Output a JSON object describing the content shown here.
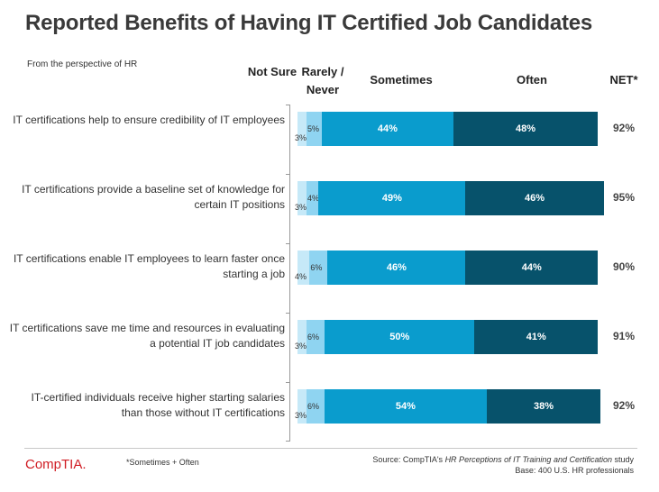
{
  "chart_data": {
    "type": "bar",
    "orientation": "horizontal-stacked",
    "title": "Reported Benefits of Having IT Certified Job Candidates",
    "subtitle": "From the perspective of HR",
    "columns": {
      "not_sure": "Not Sure",
      "rarely_never": "Rarely / Never",
      "sometimes": "Sometimes",
      "often": "Often",
      "net": "NET*"
    },
    "categories": [
      "IT certifications help to ensure credibility of IT employees",
      "IT certifications provide a baseline set of knowledge for certain IT positions",
      "IT certifications enable IT employees to learn faster once starting a job",
      "IT certifications save me time and resources in evaluating a potential IT job candidates",
      "IT-certified individuals receive higher starting salaries than those without IT certifications"
    ],
    "series": [
      {
        "name": "Not Sure",
        "values": [
          3,
          3,
          4,
          3,
          3
        ],
        "labels": [
          "3%",
          "3%",
          "4%",
          "3%",
          "3%"
        ],
        "color": "#c6e9f8"
      },
      {
        "name": "Rarely / Never",
        "values": [
          5,
          4,
          6,
          6,
          6
        ],
        "labels": [
          "5%",
          "4%",
          "6%",
          "6%",
          "6%"
        ],
        "color": "#8fd4f1"
      },
      {
        "name": "Sometimes",
        "values": [
          44,
          49,
          46,
          50,
          54
        ],
        "labels": [
          "44%",
          "49%",
          "46%",
          "50%",
          "54%"
        ],
        "color": "#0a9ccd"
      },
      {
        "name": "Often",
        "values": [
          48,
          46,
          44,
          41,
          38
        ],
        "labels": [
          "48%",
          "46%",
          "44%",
          "41%",
          "38%"
        ],
        "color": "#07526b"
      }
    ],
    "net": {
      "values": [
        92,
        95,
        90,
        91,
        92
      ],
      "labels": [
        "92%",
        "95%",
        "90%",
        "91%",
        "92%"
      ]
    },
    "xlim": [
      0,
      100
    ]
  },
  "footer": {
    "logo": "CompTIA.",
    "footnote": "*Sometimes + Often",
    "source_prefix": "Source: CompTIA's ",
    "source_title": "HR Perceptions of IT Training and Certification",
    "source_suffix": " study",
    "base": "Base: 400 U.S. HR professionals"
  },
  "colors": {
    "brand_red": "#d01c23"
  }
}
